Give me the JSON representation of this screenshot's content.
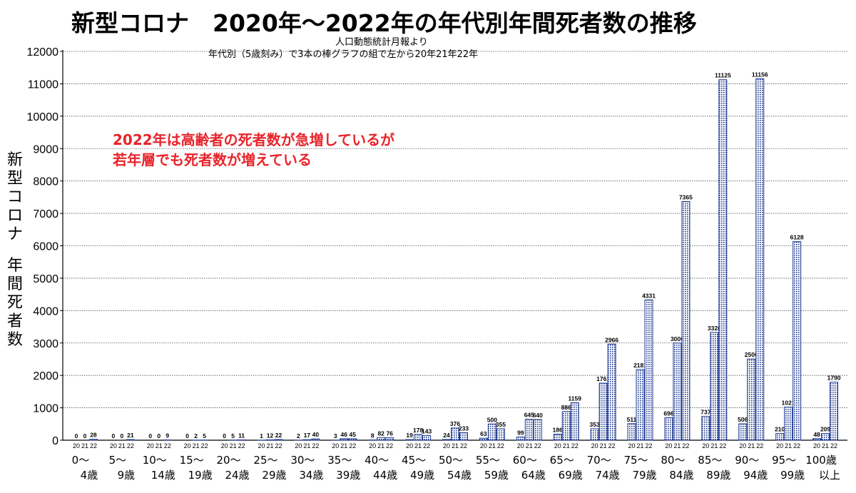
{
  "chart_data": {
    "type": "bar",
    "title": "新型コロナ　2020年～2022年の年代別年間死者数の推移",
    "subtitle1": "人口動態統計月報より",
    "subtitle2": "年代別（5歳刻み）で3本の棒グラフの組で左から20年21年22年",
    "ylabel_lines": [
      "新型コロナ",
      "年間死者数"
    ],
    "annotation": [
      "2022年は高齢者の死者数が急増しているが",
      "若年層でも死者数が増えている"
    ],
    "annotation_color": "#e8232a",
    "ylim": [
      0,
      12000
    ],
    "yticks": [
      0,
      1000,
      2000,
      3000,
      4000,
      5000,
      6000,
      7000,
      8000,
      9000,
      10000,
      11000,
      12000
    ],
    "grid": "horizontal dotted",
    "bar_year_labels": [
      "20",
      "21",
      "22"
    ],
    "categories": [
      [
        "0～",
        "4歳"
      ],
      [
        "5～",
        "9歳"
      ],
      [
        "10～",
        "14歳"
      ],
      [
        "15～",
        "19歳"
      ],
      [
        "20～",
        "24歳"
      ],
      [
        "25～",
        "29歳"
      ],
      [
        "30～",
        "34歳"
      ],
      [
        "35～",
        "39歳"
      ],
      [
        "40～",
        "44歳"
      ],
      [
        "45～",
        "49歳"
      ],
      [
        "50～",
        "54歳"
      ],
      [
        "55～",
        "59歳"
      ],
      [
        "60～",
        "64歳"
      ],
      [
        "65～",
        "69歳"
      ],
      [
        "70～",
        "74歳"
      ],
      [
        "75～",
        "79歳"
      ],
      [
        "80～",
        "84歳"
      ],
      [
        "85～",
        "89歳"
      ],
      [
        "90～",
        "94歳"
      ],
      [
        "95～",
        "99歳"
      ],
      [
        "100歳",
        "以上"
      ]
    ],
    "series": [
      {
        "values": [
          0,
          0,
          0,
          0,
          0,
          1,
          2,
          3,
          8,
          19,
          24,
          63,
          99,
          186,
          353,
          511,
          696,
          737,
          506,
          210,
          48
        ]
      },
      {
        "values": [
          0,
          0,
          0,
          2,
          5,
          12,
          17,
          46,
          82,
          178,
          376,
          500,
          645,
          886,
          1761,
          2181,
          3000,
          3328,
          2506,
          1021,
          209
        ]
      },
      {
        "values": [
          28,
          21,
          9,
          5,
          11,
          22,
          40,
          45,
          76,
          143,
          233,
          355,
          640,
          1159,
          2966,
          4331,
          7365,
          11125,
          11156,
          6128,
          1790
        ]
      }
    ],
    "bar_color": "#1f3a8f"
  }
}
